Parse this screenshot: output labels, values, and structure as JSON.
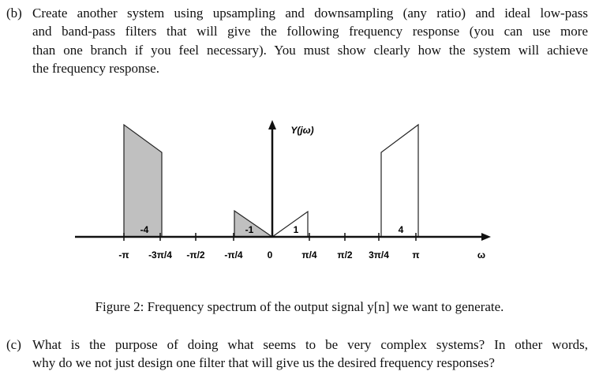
{
  "part_b": {
    "label": "(b)",
    "lines": [
      "Create another system using upsampling and downsampling (any ratio) and ideal low-pass",
      "and band-pass filters that will give the following frequency response (you can use more",
      "than one branch if you feel necessary). You must show clearly how the system will achieve",
      "the frequency response."
    ]
  },
  "figure": {
    "y_label": "Y(jω)",
    "tick_labels": [
      "-π",
      "-3π/4",
      "-π/2",
      "-π/4",
      "0",
      "π/4",
      "π/2",
      "3π/4",
      "π"
    ],
    "x_label": "ω",
    "region_labels": [
      "-4",
      "-1",
      "1",
      "4"
    ],
    "caption": "Figure 2: Frequency spectrum of the output signal y[n] we want to generate."
  },
  "part_c": {
    "label": "(c)",
    "lines": [
      "What is the purpose of doing what seems to be very complex systems? In other words,",
      "why do we not just design one filter that will give us the desired frequency responses?"
    ]
  }
}
